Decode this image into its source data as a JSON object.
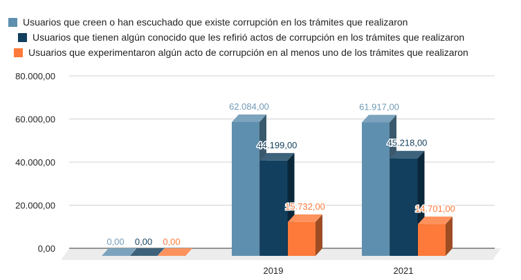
{
  "chart_data": {
    "type": "bar",
    "style": "3d-grouped",
    "title": "",
    "xlabel": "",
    "ylabel": "",
    "categories": [
      "",
      "2019",
      "2021"
    ],
    "series": [
      {
        "name": "Usuarios que creen o han escuchado que existe corrupción en los trámites que realizaron",
        "color": "#5f8fae",
        "values": [
          0,
          62084,
          61917
        ],
        "labels": [
          "0,00",
          "62.084,00",
          "61.917,00"
        ]
      },
      {
        "name": "Usuarios que tienen algún conocido que les refirió actos de corrupción en los trámites que realizaron",
        "color": "#123f5e",
        "values": [
          0,
          44199,
          45218
        ],
        "labels": [
          "0,00",
          "44.199,00",
          "45.218,00"
        ]
      },
      {
        "name": "Usuarios que experimentaron algún acto de corrupción en al menos uno de los trámites que realizaron",
        "color": "#fd7a3a",
        "values": [
          0,
          15732,
          14701
        ],
        "labels": [
          "0,00",
          "15.732,00",
          "14.701,00"
        ]
      }
    ],
    "ylim": [
      0,
      80000
    ],
    "yticks": [
      0,
      20000,
      40000,
      60000,
      80000
    ],
    "ytick_labels": [
      "0,00",
      "20.000,00",
      "40.000,00",
      "60.000,00",
      "80.000,00"
    ],
    "grid": true,
    "legend_position": "top-left"
  }
}
